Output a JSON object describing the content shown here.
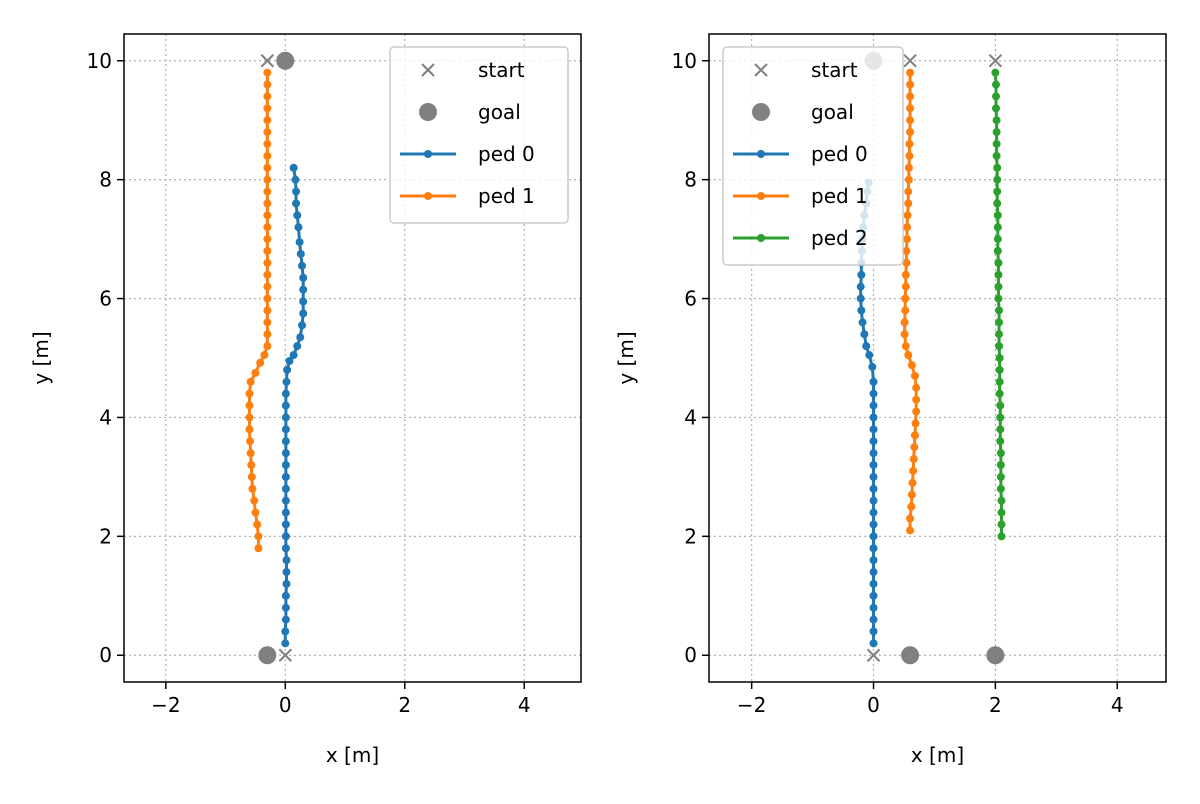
{
  "chart_data": [
    {
      "type": "line",
      "xlabel": "x [m]",
      "ylabel": "y [m]",
      "xlim": [
        -2.7,
        4.95
      ],
      "ylim": [
        -0.45,
        10.45
      ],
      "xticks": [
        -2,
        0,
        2,
        4
      ],
      "yticks": [
        0,
        2,
        4,
        6,
        8,
        10
      ],
      "grid": true,
      "legend_position": "top-right",
      "legend": [
        {
          "label": "start",
          "kind": "start"
        },
        {
          "label": "goal",
          "kind": "goal"
        },
        {
          "label": "ped 0",
          "kind": "series",
          "series": 0
        },
        {
          "label": "ped 1",
          "kind": "series",
          "series": 1
        }
      ],
      "markers": {
        "start": [
          [
            -0.3,
            10.0
          ],
          [
            0.0,
            0.0
          ]
        ],
        "goal": [
          [
            0.0,
            10.0
          ],
          [
            -0.3,
            0.0
          ]
        ]
      },
      "series": [
        {
          "name": "ped 0",
          "color": "#1f77b4",
          "points": [
            [
              0.0,
              0.2
            ],
            [
              0.0,
              0.4
            ],
            [
              0.01,
              0.6
            ],
            [
              0.01,
              0.8
            ],
            [
              0.01,
              1.0
            ],
            [
              0.02,
              1.2
            ],
            [
              0.02,
              1.4
            ],
            [
              0.02,
              1.6
            ],
            [
              0.01,
              1.8
            ],
            [
              0.01,
              2.0
            ],
            [
              0.01,
              2.2
            ],
            [
              0.01,
              2.4
            ],
            [
              0.01,
              2.6
            ],
            [
              0.01,
              2.8
            ],
            [
              0.01,
              3.0
            ],
            [
              0.01,
              3.2
            ],
            [
              0.01,
              3.4
            ],
            [
              0.01,
              3.6
            ],
            [
              0.01,
              3.8
            ],
            [
              0.01,
              4.0
            ],
            [
              0.01,
              4.2
            ],
            [
              0.01,
              4.4
            ],
            [
              0.02,
              4.6
            ],
            [
              0.03,
              4.8
            ],
            [
              0.07,
              4.95
            ],
            [
              0.14,
              5.05
            ],
            [
              0.2,
              5.2
            ],
            [
              0.25,
              5.35
            ],
            [
              0.28,
              5.55
            ],
            [
              0.3,
              5.75
            ],
            [
              0.3,
              5.95
            ],
            [
              0.3,
              6.15
            ],
            [
              0.3,
              6.35
            ],
            [
              0.28,
              6.55
            ],
            [
              0.26,
              6.75
            ],
            [
              0.24,
              6.95
            ],
            [
              0.22,
              7.2
            ],
            [
              0.2,
              7.4
            ],
            [
              0.18,
              7.6
            ],
            [
              0.18,
              7.8
            ],
            [
              0.17,
              8.0
            ],
            [
              0.14,
              8.2
            ]
          ]
        },
        {
          "name": "ped 1",
          "color": "#ff7f0e",
          "points": [
            [
              -0.45,
              1.8
            ],
            [
              -0.45,
              2.0
            ],
            [
              -0.47,
              2.2
            ],
            [
              -0.5,
              2.4
            ],
            [
              -0.52,
              2.6
            ],
            [
              -0.55,
              2.8
            ],
            [
              -0.56,
              3.0
            ],
            [
              -0.57,
              3.2
            ],
            [
              -0.58,
              3.4
            ],
            [
              -0.59,
              3.6
            ],
            [
              -0.6,
              3.8
            ],
            [
              -0.6,
              4.0
            ],
            [
              -0.6,
              4.2
            ],
            [
              -0.6,
              4.4
            ],
            [
              -0.58,
              4.6
            ],
            [
              -0.5,
              4.75
            ],
            [
              -0.42,
              4.92
            ],
            [
              -0.35,
              5.05
            ],
            [
              -0.3,
              5.2
            ],
            [
              -0.3,
              5.4
            ],
            [
              -0.3,
              5.6
            ],
            [
              -0.3,
              5.8
            ],
            [
              -0.3,
              6.0
            ],
            [
              -0.3,
              6.2
            ],
            [
              -0.3,
              6.4
            ],
            [
              -0.3,
              6.6
            ],
            [
              -0.3,
              6.8
            ],
            [
              -0.3,
              7.0
            ],
            [
              -0.3,
              7.2
            ],
            [
              -0.3,
              7.4
            ],
            [
              -0.3,
              7.6
            ],
            [
              -0.3,
              7.8
            ],
            [
              -0.3,
              8.0
            ],
            [
              -0.3,
              8.2
            ],
            [
              -0.3,
              8.4
            ],
            [
              -0.3,
              8.6
            ],
            [
              -0.3,
              8.8
            ],
            [
              -0.3,
              9.0
            ],
            [
              -0.3,
              9.2
            ],
            [
              -0.3,
              9.4
            ],
            [
              -0.3,
              9.6
            ],
            [
              -0.3,
              9.8
            ]
          ]
        }
      ]
    },
    {
      "type": "line",
      "xlabel": "x [m]",
      "ylabel": "y [m]",
      "xlim": [
        -2.7,
        4.8
      ],
      "ylim": [
        -0.45,
        10.45
      ],
      "xticks": [
        -2,
        0,
        2,
        4
      ],
      "yticks": [
        0,
        2,
        4,
        6,
        8,
        10
      ],
      "grid": true,
      "legend_position": "top-left",
      "legend": [
        {
          "label": "start",
          "kind": "start"
        },
        {
          "label": "goal",
          "kind": "goal"
        },
        {
          "label": "ped 0",
          "kind": "series",
          "series": 0
        },
        {
          "label": "ped 1",
          "kind": "series",
          "series": 1
        },
        {
          "label": "ped 2",
          "kind": "series",
          "series": 2
        }
      ],
      "markers": {
        "start": [
          [
            0.0,
            0.0
          ],
          [
            0.6,
            10.0
          ],
          [
            2.0,
            10.0
          ]
        ],
        "goal": [
          [
            0.0,
            10.0
          ],
          [
            0.6,
            0.0
          ],
          [
            2.0,
            0.0
          ]
        ]
      },
      "series": [
        {
          "name": "ped 0",
          "color": "#1f77b4",
          "points": [
            [
              0.0,
              0.2
            ],
            [
              0.0,
              0.4
            ],
            [
              0.0,
              0.6
            ],
            [
              0.0,
              0.8
            ],
            [
              0.0,
              1.0
            ],
            [
              0.0,
              1.2
            ],
            [
              0.0,
              1.4
            ],
            [
              0.0,
              1.6
            ],
            [
              0.0,
              1.8
            ],
            [
              0.0,
              2.0
            ],
            [
              0.0,
              2.2
            ],
            [
              0.0,
              2.4
            ],
            [
              0.0,
              2.6
            ],
            [
              0.0,
              2.8
            ],
            [
              0.0,
              3.0
            ],
            [
              0.0,
              3.2
            ],
            [
              0.0,
              3.4
            ],
            [
              0.0,
              3.6
            ],
            [
              0.0,
              3.8
            ],
            [
              0.0,
              4.0
            ],
            [
              0.0,
              4.2
            ],
            [
              0.0,
              4.4
            ],
            [
              0.0,
              4.6
            ],
            [
              -0.02,
              4.85
            ],
            [
              -0.07,
              5.05
            ],
            [
              -0.12,
              5.2
            ],
            [
              -0.15,
              5.4
            ],
            [
              -0.18,
              5.6
            ],
            [
              -0.2,
              5.8
            ],
            [
              -0.21,
              6.0
            ],
            [
              -0.21,
              6.2
            ],
            [
              -0.2,
              6.4
            ],
            [
              -0.2,
              6.6
            ],
            [
              -0.19,
              6.8
            ],
            [
              -0.18,
              7.0
            ],
            [
              -0.17,
              7.2
            ],
            [
              -0.15,
              7.4
            ],
            [
              -0.12,
              7.6
            ],
            [
              -0.1,
              7.8
            ],
            [
              -0.08,
              7.95
            ]
          ]
        },
        {
          "name": "ped 1",
          "color": "#ff7f0e",
          "points": [
            [
              0.6,
              2.1
            ],
            [
              0.6,
              2.3
            ],
            [
              0.62,
              2.5
            ],
            [
              0.63,
              2.7
            ],
            [
              0.64,
              2.9
            ],
            [
              0.65,
              3.1
            ],
            [
              0.66,
              3.3
            ],
            [
              0.67,
              3.5
            ],
            [
              0.68,
              3.7
            ],
            [
              0.69,
              3.9
            ],
            [
              0.7,
              4.1
            ],
            [
              0.7,
              4.3
            ],
            [
              0.7,
              4.5
            ],
            [
              0.68,
              4.7
            ],
            [
              0.63,
              4.88
            ],
            [
              0.57,
              5.05
            ],
            [
              0.53,
              5.2
            ],
            [
              0.51,
              5.4
            ],
            [
              0.51,
              5.6
            ],
            [
              0.52,
              5.8
            ],
            [
              0.52,
              6.0
            ],
            [
              0.53,
              6.2
            ],
            [
              0.53,
              6.4
            ],
            [
              0.54,
              6.6
            ],
            [
              0.54,
              6.8
            ],
            [
              0.55,
              7.0
            ],
            [
              0.55,
              7.2
            ],
            [
              0.56,
              7.4
            ],
            [
              0.57,
              7.6
            ],
            [
              0.57,
              7.8
            ],
            [
              0.58,
              8.0
            ],
            [
              0.58,
              8.2
            ],
            [
              0.59,
              8.4
            ],
            [
              0.59,
              8.6
            ],
            [
              0.6,
              8.8
            ],
            [
              0.6,
              9.0
            ],
            [
              0.6,
              9.2
            ],
            [
              0.6,
              9.4
            ],
            [
              0.6,
              9.6
            ],
            [
              0.6,
              9.8
            ]
          ]
        },
        {
          "name": "ped 2",
          "color": "#2ca02c",
          "points": [
            [
              2.1,
              2.0
            ],
            [
              2.1,
              2.2
            ],
            [
              2.1,
              2.4
            ],
            [
              2.1,
              2.6
            ],
            [
              2.09,
              2.8
            ],
            [
              2.09,
              3.0
            ],
            [
              2.09,
              3.2
            ],
            [
              2.09,
              3.4
            ],
            [
              2.08,
              3.6
            ],
            [
              2.08,
              3.8
            ],
            [
              2.08,
              4.0
            ],
            [
              2.08,
              4.2
            ],
            [
              2.07,
              4.4
            ],
            [
              2.07,
              4.6
            ],
            [
              2.07,
              4.8
            ],
            [
              2.07,
              5.0
            ],
            [
              2.06,
              5.2
            ],
            [
              2.06,
              5.4
            ],
            [
              2.06,
              5.6
            ],
            [
              2.06,
              5.8
            ],
            [
              2.05,
              6.0
            ],
            [
              2.05,
              6.2
            ],
            [
              2.05,
              6.4
            ],
            [
              2.05,
              6.6
            ],
            [
              2.04,
              6.8
            ],
            [
              2.04,
              7.0
            ],
            [
              2.04,
              7.2
            ],
            [
              2.04,
              7.4
            ],
            [
              2.03,
              7.6
            ],
            [
              2.03,
              7.8
            ],
            [
              2.03,
              8.0
            ],
            [
              2.03,
              8.2
            ],
            [
              2.02,
              8.4
            ],
            [
              2.02,
              8.6
            ],
            [
              2.02,
              8.8
            ],
            [
              2.02,
              9.0
            ],
            [
              2.01,
              9.2
            ],
            [
              2.01,
              9.4
            ],
            [
              2.01,
              9.6
            ],
            [
              2.0,
              9.8
            ]
          ]
        }
      ]
    }
  ]
}
